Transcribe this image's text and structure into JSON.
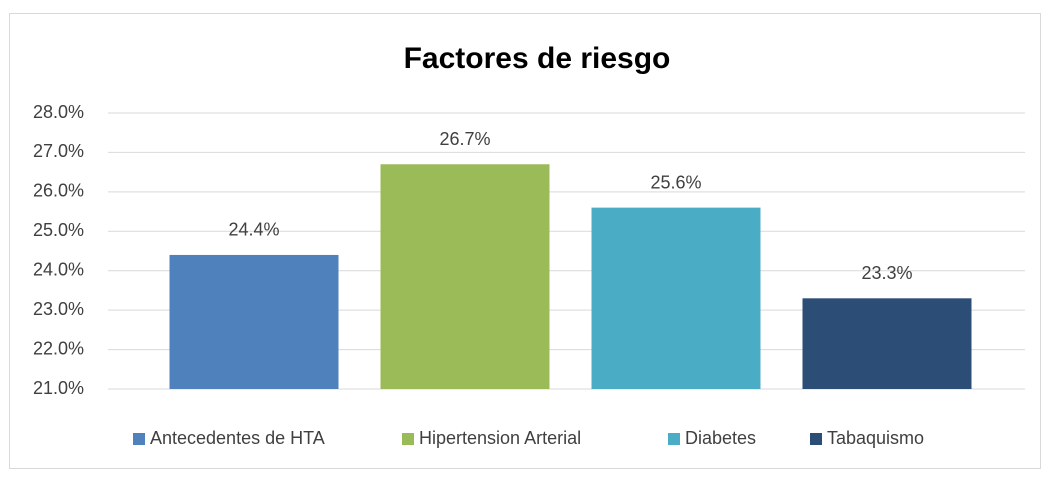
{
  "chart_data": {
    "type": "bar",
    "title": "Factores de riesgo",
    "categories": [
      null
    ],
    "series": [
      {
        "name": "Antecedentes de HTA",
        "color": "#4f81bd",
        "values": [
          24.4
        ],
        "value_labels": [
          "24.4%"
        ]
      },
      {
        "name": "Hipertension Arterial",
        "color": "#9bbb59",
        "values": [
          26.7
        ],
        "value_labels": [
          "26.7%"
        ]
      },
      {
        "name": "Diabetes",
        "color": "#4bacc6",
        "values": [
          25.6
        ],
        "value_labels": [
          "25.6%"
        ]
      },
      {
        "name": "Tabaquismo",
        "color": "#2c4d75",
        "values": [
          23.3
        ],
        "value_labels": [
          "23.3%"
        ]
      }
    ],
    "ylim": [
      21,
      28
    ],
    "yticks": [
      {
        "value": 21,
        "label": "21.0%"
      },
      {
        "value": 22,
        "label": "22.0%"
      },
      {
        "value": 23,
        "label": "23.0%"
      },
      {
        "value": 24,
        "label": "24.0%"
      },
      {
        "value": 25,
        "label": "25.0%"
      },
      {
        "value": 26,
        "label": "26.0%"
      },
      {
        "value": 27,
        "label": "27.0%"
      },
      {
        "value": 28,
        "label": "28.0%"
      }
    ],
    "grid": true,
    "legend": "bottom"
  }
}
